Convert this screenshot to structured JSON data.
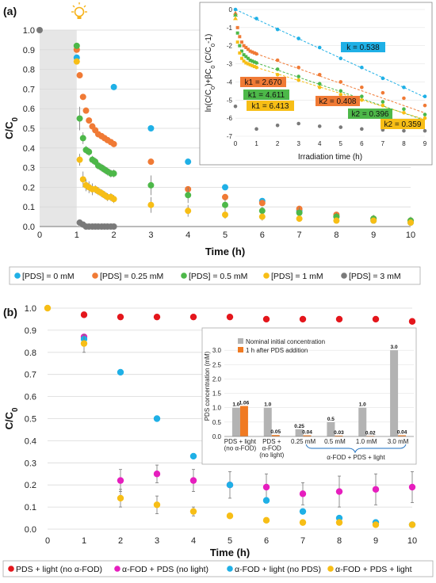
{
  "colors": {
    "c0": "#1fb0e6",
    "c025": "#f07a35",
    "c05": "#4db849",
    "c1": "#f7be16",
    "c3": "#7a7a7a",
    "red": "#e4161c",
    "magenta": "#e61ebe",
    "barGray": "#b3b3b3",
    "barOrange": "#f07a22",
    "shade": "#e6e6e6",
    "bulb": "#f6b21a"
  },
  "chart_data": [
    {
      "id": "a",
      "type": "scatter",
      "panel_label": "(a)",
      "xlabel": "Time (h)",
      "ylabel": "C/C0",
      "xlim": [
        0,
        10
      ],
      "ylim": [
        0,
        1.0
      ],
      "xticks": [
        "0",
        "1",
        "2",
        "3",
        "4",
        "5",
        "6",
        "7",
        "8",
        "9",
        "10"
      ],
      "yticks": [
        "0.0",
        "0.1",
        "0.2",
        "0.3",
        "0.4",
        "0.5",
        "0.6",
        "0.7",
        "0.8",
        "0.9",
        "1.0"
      ],
      "dark_period": [
        0,
        1
      ],
      "legend": [
        "[PDS] = 0 mM",
        "[PDS] = 0.25 mM",
        "[PDS] = 0.5 mM",
        "[PDS] = 1 mM",
        "[PDS] = 3 mM"
      ],
      "series": [
        {
          "name": "[PDS] = 0 mM",
          "color": "c0",
          "x": [
            1,
            2,
            3,
            4,
            5,
            6,
            7,
            8,
            9,
            10
          ],
          "y": [
            0.86,
            0.71,
            0.5,
            0.33,
            0.2,
            0.13,
            0.08,
            0.05,
            0.03,
            0.02
          ],
          "err": [
            0,
            0,
            0,
            0,
            0,
            0,
            0,
            0,
            0,
            0
          ]
        },
        {
          "name": "[PDS] = 0.25 mM",
          "color": "c025",
          "x": [
            1,
            1.08,
            1.17,
            1.25,
            1.33,
            1.42,
            1.5,
            1.58,
            1.67,
            1.75,
            1.83,
            1.92,
            2,
            3,
            4,
            5,
            6,
            7,
            8,
            9,
            10
          ],
          "y": [
            0.9,
            0.77,
            0.66,
            0.59,
            0.54,
            0.51,
            0.49,
            0.47,
            0.46,
            0.45,
            0.44,
            0.43,
            0.42,
            0.33,
            0.19,
            0.15,
            0.12,
            0.09,
            0.06,
            0.04,
            0.03
          ],
          "err": [
            0,
            0,
            0,
            0,
            0,
            0,
            0,
            0,
            0,
            0,
            0,
            0,
            0,
            0,
            0,
            0,
            0,
            0,
            0,
            0,
            0
          ]
        },
        {
          "name": "[PDS] = 0.5 mM",
          "color": "c05",
          "x": [
            1,
            1.08,
            1.17,
            1.25,
            1.33,
            1.42,
            1.5,
            1.58,
            1.67,
            1.75,
            1.83,
            1.92,
            2,
            3,
            4,
            5,
            6,
            7,
            8,
            9,
            10
          ],
          "y": [
            0.92,
            0.55,
            0.45,
            0.39,
            0.38,
            0.34,
            0.33,
            0.31,
            0.3,
            0.29,
            0.28,
            0.27,
            0.27,
            0.21,
            0.16,
            0.11,
            0.08,
            0.07,
            0.05,
            0.04,
            0.03
          ],
          "err": [
            0,
            0.06,
            0.03,
            0.02,
            0.02,
            0.02,
            0.02,
            0.02,
            0.02,
            0.02,
            0.02,
            0.02,
            0.02,
            0.05,
            0.04,
            0.03,
            0.02,
            0.03,
            0.02,
            0.02,
            0.02
          ]
        },
        {
          "name": "[PDS] = 1 mM",
          "color": "c1",
          "x": [
            1,
            1.08,
            1.17,
            1.25,
            1.33,
            1.42,
            1.5,
            1.58,
            1.67,
            1.75,
            1.83,
            1.92,
            2,
            3,
            4,
            5,
            6,
            7,
            8,
            9,
            10
          ],
          "y": [
            0.84,
            0.34,
            0.24,
            0.21,
            0.2,
            0.19,
            0.19,
            0.18,
            0.17,
            0.16,
            0.15,
            0.15,
            0.14,
            0.11,
            0.08,
            0.06,
            0.05,
            0.04,
            0.03,
            0.03,
            0.02
          ],
          "err": [
            0,
            0.03,
            0.04,
            0.03,
            0.03,
            0.03,
            0.02,
            0.02,
            0.02,
            0.02,
            0.02,
            0.02,
            0.02,
            0.04,
            0.03,
            0.02,
            0.02,
            0.01,
            0.01,
            0.01,
            0.01
          ]
        },
        {
          "name": "[PDS] = 3 mM",
          "color": "c3",
          "x": [
            0,
            1.08,
            1.17,
            1.25,
            1.33,
            1.42,
            1.5,
            1.58,
            1.67,
            1.75,
            1.83,
            1.92,
            2
          ],
          "y": [
            1.0,
            0.02,
            0.01,
            0.0,
            0.0,
            0.0,
            0.0,
            0.0,
            0.0,
            0.0,
            0.0,
            0.0,
            0.0
          ],
          "err": [
            0,
            0,
            0,
            0,
            0,
            0,
            0,
            0,
            0,
            0,
            0,
            0,
            0
          ]
        }
      ]
    },
    {
      "id": "a-inset",
      "type": "scatter",
      "xlabel": "Irradiation time (h)",
      "ylabel": "ln(C/C0)+βC0 (C/C0-1)",
      "xlim": [
        0,
        9
      ],
      "ylim": [
        -7,
        0
      ],
      "xticks": [
        "0",
        "1",
        "2",
        "3",
        "4",
        "5",
        "6",
        "7",
        "8",
        "9"
      ],
      "yticks": [
        "0",
        "-1",
        "-2",
        "-3",
        "-4",
        "-5",
        "-6",
        "-7"
      ],
      "annotations": [
        {
          "text": "k = 0.538",
          "color": "c0"
        },
        {
          "text": "k1 = 2.670",
          "color": "c025"
        },
        {
          "text": "k1 = 4.611",
          "color": "c05"
        },
        {
          "text": "k1 = 6.413",
          "color": "c1"
        },
        {
          "text": "k2 = 0.408",
          "color": "c025"
        },
        {
          "text": "k2 = 0.396",
          "color": "c05"
        },
        {
          "text": "k2 = 0.359",
          "color": "c1"
        }
      ],
      "series": [
        {
          "name": "0 mM",
          "color": "c0",
          "x": [
            0,
            1,
            2,
            3,
            4,
            5,
            6,
            7,
            8,
            9
          ],
          "y": [
            0,
            -0.5,
            -1.1,
            -1.6,
            -2.1,
            -2.7,
            -3.2,
            -3.8,
            -4.3,
            -4.8
          ]
        },
        {
          "name": "0.25 mM",
          "color": "c025",
          "x": [
            0,
            0.1,
            0.2,
            0.3,
            0.4,
            0.5,
            0.6,
            0.7,
            0.8,
            0.9,
            1,
            2,
            3,
            4,
            5,
            6,
            7,
            8,
            9
          ],
          "y": [
            -0.2,
            -1.0,
            -1.5,
            -1.8,
            -2.0,
            -2.1,
            -2.2,
            -2.3,
            -2.35,
            -2.4,
            -2.45,
            -2.8,
            -3.2,
            -3.6,
            -4.0,
            -4.3,
            -4.6,
            -4.9,
            -5.3
          ]
        },
        {
          "name": "0.5 mM",
          "color": "c05",
          "x": [
            0,
            0.1,
            0.2,
            0.3,
            0.4,
            0.5,
            0.6,
            0.7,
            0.8,
            0.9,
            1,
            2,
            3,
            4,
            5,
            6,
            7,
            8,
            9
          ],
          "y": [
            -0.3,
            -1.3,
            -2.0,
            -2.3,
            -2.5,
            -2.6,
            -2.7,
            -2.8,
            -2.85,
            -2.9,
            -2.95,
            -3.3,
            -3.7,
            -4.1,
            -4.5,
            -4.8,
            -5.1,
            -5.5,
            -5.8
          ]
        },
        {
          "name": "1 mM",
          "color": "c1",
          "x": [
            0,
            0.1,
            0.2,
            0.3,
            0.4,
            0.5,
            0.6,
            0.7,
            0.8,
            0.9,
            1,
            2,
            3,
            4,
            5,
            6,
            7,
            8,
            9
          ],
          "y": [
            -0.5,
            -1.8,
            -2.4,
            -2.7,
            -2.85,
            -2.95,
            -3.0,
            -3.05,
            -3.1,
            -3.15,
            -3.2,
            -3.6,
            -3.9,
            -4.3,
            -4.7,
            -5.0,
            -5.3,
            -5.7,
            -6.0
          ]
        },
        {
          "name": "3 mM",
          "color": "c3",
          "x": [
            0,
            1,
            2,
            3,
            4,
            5,
            6,
            7,
            8,
            9
          ],
          "y": [
            -5.35,
            -6.6,
            -6.4,
            -6.3,
            -6.45,
            -6.5,
            -6.6,
            -6.65,
            -6.7,
            -6.7
          ]
        }
      ]
    },
    {
      "id": "b",
      "type": "scatter",
      "panel_label": "(b)",
      "xlabel": "Time (h)",
      "ylabel": "C/C0",
      "xlim": [
        0,
        10
      ],
      "ylim": [
        0,
        1.0
      ],
      "xticks": [
        "0",
        "1",
        "2",
        "3",
        "4",
        "5",
        "6",
        "7",
        "8",
        "9",
        "10"
      ],
      "yticks": [
        "0.0",
        "0.1",
        "0.2",
        "0.3",
        "0.4",
        "0.5",
        "0.6",
        "0.7",
        "0.8",
        "0.9",
        "1.0"
      ],
      "legend": [
        "PDS + light (no α-FOD)",
        "α-FOD + PDS (no light)",
        "α-FOD + light (no PDS)",
        "α-FOD + PDS + light"
      ],
      "series": [
        {
          "name": "PDS + light (no α-FOD)",
          "color": "red",
          "x": [
            1,
            2,
            3,
            4,
            5,
            6,
            7,
            8,
            9,
            10
          ],
          "y": [
            0.97,
            0.96,
            0.96,
            0.96,
            0.96,
            0.95,
            0.95,
            0.95,
            0.95,
            0.94
          ],
          "err": [
            0,
            0,
            0,
            0,
            0,
            0,
            0,
            0,
            0,
            0
          ]
        },
        {
          "name": "α-FOD + PDS (no light)",
          "color": "magenta",
          "x": [
            1,
            2,
            3,
            4,
            5,
            6,
            7,
            8,
            9,
            10
          ],
          "y": [
            0.87,
            0.22,
            0.25,
            0.22,
            0.2,
            0.19,
            0.16,
            0.17,
            0.18,
            0.19
          ],
          "err": [
            0,
            0.05,
            0.04,
            0.05,
            0.06,
            0.06,
            0.05,
            0.07,
            0.07,
            0.07
          ]
        },
        {
          "name": "α-FOD + light (no PDS)",
          "color": "c0",
          "x": [
            1,
            2,
            3,
            4,
            5,
            6,
            7,
            8,
            9,
            10
          ],
          "y": [
            0.86,
            0.71,
            0.5,
            0.33,
            0.2,
            0.13,
            0.08,
            0.05,
            0.03,
            0.02
          ],
          "err": [
            0,
            0,
            0,
            0,
            0,
            0,
            0,
            0,
            0,
            0
          ]
        },
        {
          "name": "α-FOD + PDS + light",
          "color": "c1",
          "x": [
            0,
            1,
            2,
            3,
            4,
            5,
            6,
            7,
            8,
            9,
            10
          ],
          "y": [
            1.0,
            0.84,
            0.14,
            0.11,
            0.08,
            0.06,
            0.04,
            0.03,
            0.03,
            0.02,
            0.02
          ],
          "err": [
            0,
            0.04,
            0.04,
            0.04,
            0.02,
            0.01,
            0.01,
            0.01,
            0.01,
            0.01,
            0.01
          ]
        }
      ]
    },
    {
      "id": "b-inset",
      "type": "bar",
      "ylabel": "PDS concentration (mM)",
      "ylim": [
        0,
        3.5
      ],
      "yticks": [
        "0.0",
        "0.5",
        "1.0",
        "1.5",
        "2.0",
        "2.5",
        "3.0"
      ],
      "categories": [
        "PDS + light\n(no α-FOD)",
        "PDS +\nα-FOD\n(no light)",
        "0.25 mM",
        "0.5 mM",
        "1.0 mM",
        "3.0 mM"
      ],
      "group_label": "α-FOD + PDS + light",
      "legend": [
        "Nominal initial concentration",
        "1 h after PDS addition"
      ],
      "series": [
        {
          "name": "Nominal initial concentration",
          "color": "barGray",
          "values": [
            1.0,
            1.0,
            0.25,
            0.5,
            1.0,
            3.0
          ],
          "labels": [
            "1.0",
            "1.0",
            "0.25",
            "0.5",
            "1.0",
            "3.0"
          ]
        },
        {
          "name": "1 h after PDS addition",
          "color": "barOrange",
          "values": [
            1.06,
            0.05,
            0.04,
            0.03,
            0.02,
            0.04
          ],
          "labels": [
            "1.06",
            "0.05",
            "0.04",
            "0.03",
            "0.02",
            "0.04"
          ]
        }
      ]
    }
  ]
}
